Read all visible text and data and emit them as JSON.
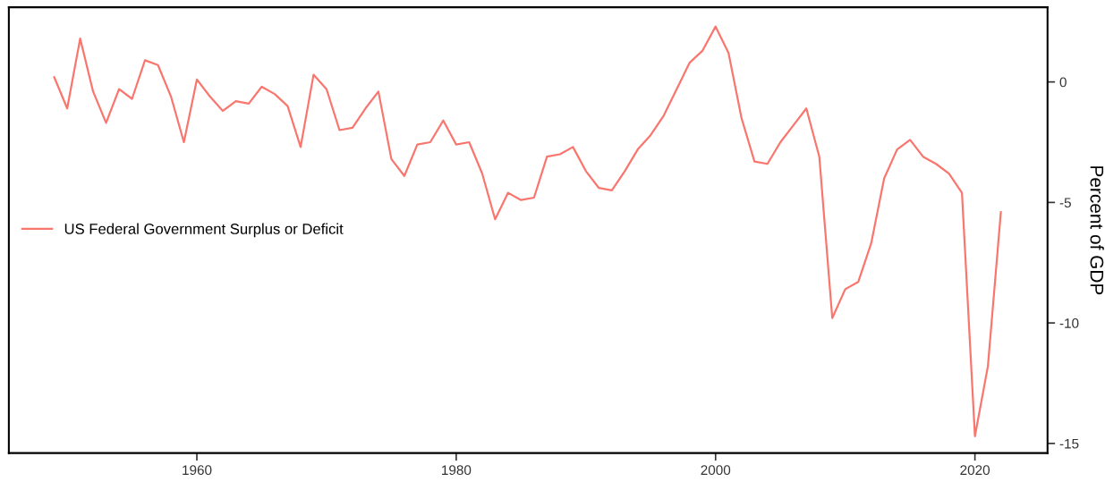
{
  "chart_data": {
    "type": "line",
    "ylabel": "Percent of GDP",
    "x": [
      1949,
      1950,
      1951,
      1952,
      1953,
      1954,
      1955,
      1956,
      1957,
      1958,
      1959,
      1960,
      1961,
      1962,
      1963,
      1964,
      1965,
      1966,
      1967,
      1968,
      1969,
      1970,
      1971,
      1972,
      1973,
      1974,
      1975,
      1976,
      1977,
      1978,
      1979,
      1980,
      1981,
      1982,
      1983,
      1984,
      1985,
      1986,
      1987,
      1988,
      1989,
      1990,
      1991,
      1992,
      1993,
      1994,
      1995,
      1996,
      1997,
      1998,
      1999,
      2000,
      2001,
      2002,
      2003,
      2004,
      2005,
      2006,
      2007,
      2008,
      2009,
      2010,
      2011,
      2012,
      2013,
      2014,
      2015,
      2016,
      2017,
      2018,
      2019,
      2020,
      2021,
      2022
    ],
    "series": [
      {
        "name": "US Federal Government Surplus or Deficit",
        "color": "#f8766d",
        "values": [
          0.2,
          -1.1,
          1.8,
          -0.4,
          -1.7,
          -0.3,
          -0.7,
          0.9,
          0.7,
          -0.6,
          -2.5,
          0.1,
          -0.6,
          -1.2,
          -0.8,
          -0.9,
          -0.2,
          -0.5,
          -1.0,
          -2.7,
          0.3,
          -0.3,
          -2.0,
          -1.9,
          -1.1,
          -0.4,
          -3.2,
          -3.9,
          -2.6,
          -2.5,
          -1.6,
          -2.6,
          -2.5,
          -3.8,
          -5.7,
          -4.6,
          -4.9,
          -4.8,
          -3.1,
          -3.0,
          -2.7,
          -3.7,
          -4.4,
          -4.5,
          -3.7,
          -2.8,
          -2.2,
          -1.4,
          -0.3,
          0.8,
          1.3,
          2.3,
          1.2,
          -1.5,
          -3.3,
          -3.4,
          -2.5,
          -1.8,
          -1.1,
          -3.1,
          -9.8,
          -8.6,
          -8.3,
          -6.7,
          -4.0,
          -2.8,
          -2.4,
          -3.1,
          -3.4,
          -3.8,
          -4.6,
          -14.7,
          -11.8,
          -5.4
        ]
      }
    ],
    "xlim": [
      1945.5,
      2025.6
    ],
    "ylim": [
      -15.4,
      3.1
    ],
    "xticks": [
      1960,
      1980,
      2000,
      2020
    ],
    "yticks": [
      0,
      -5,
      -10,
      -15
    ],
    "grid": false,
    "legend": "left",
    "marker": "none",
    "line_style": "solid"
  }
}
